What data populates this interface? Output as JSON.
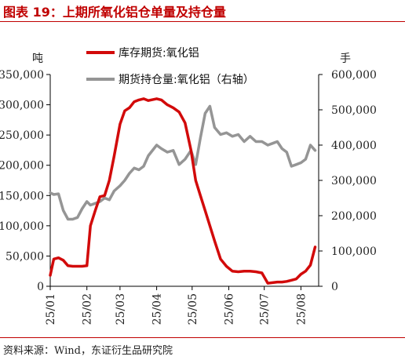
{
  "title": "图表 19：上期所氧化铝仓单量及持仓量",
  "source": "资料来源：Wind，东证衍生品研究院",
  "colors": {
    "title": "#c00000",
    "rule": "#c00000",
    "primary_series": "#d20a0a",
    "secondary_series": "#959595",
    "axis": "#000000"
  },
  "chart_data": {
    "type": "line",
    "left_axis": {
      "unit": "吨",
      "min": 0,
      "max": 350000,
      "ticks": [
        0,
        50000,
        100000,
        150000,
        200000,
        250000,
        300000,
        350000
      ],
      "tick_labels": [
        "0",
        "50,000",
        "100,000",
        "150,000",
        "200,000",
        "250,000",
        "300,000",
        "350,000"
      ]
    },
    "right_axis": {
      "unit": "手",
      "min": 0,
      "max": 600000,
      "ticks": [
        0,
        100000,
        200000,
        300000,
        400000,
        500000,
        600000
      ],
      "tick_labels": [
        "0",
        "100,000",
        "200,000",
        "300,000",
        "400,000",
        "500,000",
        "600,000"
      ]
    },
    "x_axis": {
      "min": "2025-01-01",
      "max": "2025-08-16",
      "ticks": [
        "2025-01-01",
        "2025-02-01",
        "2025-03-01",
        "2025-04-01",
        "2025-05-01",
        "2025-06-01",
        "2025-07-01",
        "2025-08-01"
      ],
      "tick_labels": [
        "25/01",
        "25/02",
        "25/03",
        "25/04",
        "25/05",
        "25/06",
        "25/07",
        "25/08"
      ]
    },
    "grid": false,
    "legend_position": "top",
    "series": [
      {
        "name": "库存期货:氧化铝",
        "axis": "left",
        "color": "#d20a0a",
        "x": [
          "2025-01-01",
          "2025-01-04",
          "2025-01-08",
          "2025-01-12",
          "2025-01-16",
          "2025-01-20",
          "2025-01-24",
          "2025-01-28",
          "2025-02-01",
          "2025-02-04",
          "2025-02-08",
          "2025-02-12",
          "2025-02-16",
          "2025-02-20",
          "2025-02-24",
          "2025-03-01",
          "2025-03-05",
          "2025-03-09",
          "2025-03-13",
          "2025-03-17",
          "2025-03-21",
          "2025-03-25",
          "2025-04-01",
          "2025-04-05",
          "2025-04-10",
          "2025-04-15",
          "2025-04-20",
          "2025-04-25",
          "2025-04-30",
          "2025-05-04",
          "2025-05-08",
          "2025-05-12",
          "2025-05-16",
          "2025-05-20",
          "2025-05-25",
          "2025-05-30",
          "2025-06-04",
          "2025-06-09",
          "2025-06-14",
          "2025-06-19",
          "2025-06-24",
          "2025-06-29",
          "2025-07-04",
          "2025-07-08",
          "2025-07-12",
          "2025-07-16",
          "2025-07-20",
          "2025-07-24",
          "2025-07-28",
          "2025-08-01",
          "2025-08-05",
          "2025-08-09",
          "2025-08-13"
        ],
        "values": [
          18000,
          45000,
          47000,
          43000,
          34000,
          33000,
          33000,
          33000,
          34000,
          100000,
          125000,
          148000,
          150000,
          175000,
          215000,
          268000,
          290000,
          295000,
          305000,
          308000,
          310000,
          307000,
          310000,
          308000,
          300000,
          295000,
          288000,
          270000,
          225000,
          175000,
          150000,
          125000,
          100000,
          75000,
          45000,
          33000,
          25000,
          24000,
          25000,
          25000,
          24000,
          22000,
          5000,
          6000,
          7000,
          7000,
          8000,
          10000,
          12000,
          20000,
          25000,
          35000,
          65000
        ]
      },
      {
        "name": "期货持仓量:氧化铝（右轴）",
        "axis": "right",
        "color": "#959595",
        "x": [
          "2025-01-01",
          "2025-01-04",
          "2025-01-08",
          "2025-01-12",
          "2025-01-16",
          "2025-01-20",
          "2025-01-24",
          "2025-01-28",
          "2025-02-01",
          "2025-02-04",
          "2025-02-08",
          "2025-02-12",
          "2025-02-16",
          "2025-02-20",
          "2025-02-24",
          "2025-03-01",
          "2025-03-05",
          "2025-03-09",
          "2025-03-13",
          "2025-03-17",
          "2025-03-21",
          "2025-03-25",
          "2025-04-01",
          "2025-04-05",
          "2025-04-10",
          "2025-04-15",
          "2025-04-20",
          "2025-04-25",
          "2025-04-30",
          "2025-05-04",
          "2025-05-08",
          "2025-05-12",
          "2025-05-16",
          "2025-05-20",
          "2025-05-25",
          "2025-05-30",
          "2025-06-04",
          "2025-06-09",
          "2025-06-14",
          "2025-06-19",
          "2025-06-24",
          "2025-06-29",
          "2025-07-04",
          "2025-07-08",
          "2025-07-12",
          "2025-07-16",
          "2025-07-20",
          "2025-07-24",
          "2025-07-28",
          "2025-08-01",
          "2025-08-05",
          "2025-08-09",
          "2025-08-13"
        ],
        "values": [
          265000,
          260000,
          262000,
          215000,
          190000,
          190000,
          195000,
          220000,
          240000,
          230000,
          235000,
          240000,
          250000,
          245000,
          270000,
          285000,
          300000,
          320000,
          335000,
          330000,
          340000,
          370000,
          400000,
          390000,
          380000,
          385000,
          345000,
          360000,
          385000,
          345000,
          420000,
          490000,
          510000,
          450000,
          430000,
          435000,
          425000,
          430000,
          410000,
          425000,
          410000,
          410000,
          400000,
          405000,
          410000,
          390000,
          380000,
          340000,
          345000,
          350000,
          360000,
          400000,
          385000
        ]
      }
    ]
  }
}
